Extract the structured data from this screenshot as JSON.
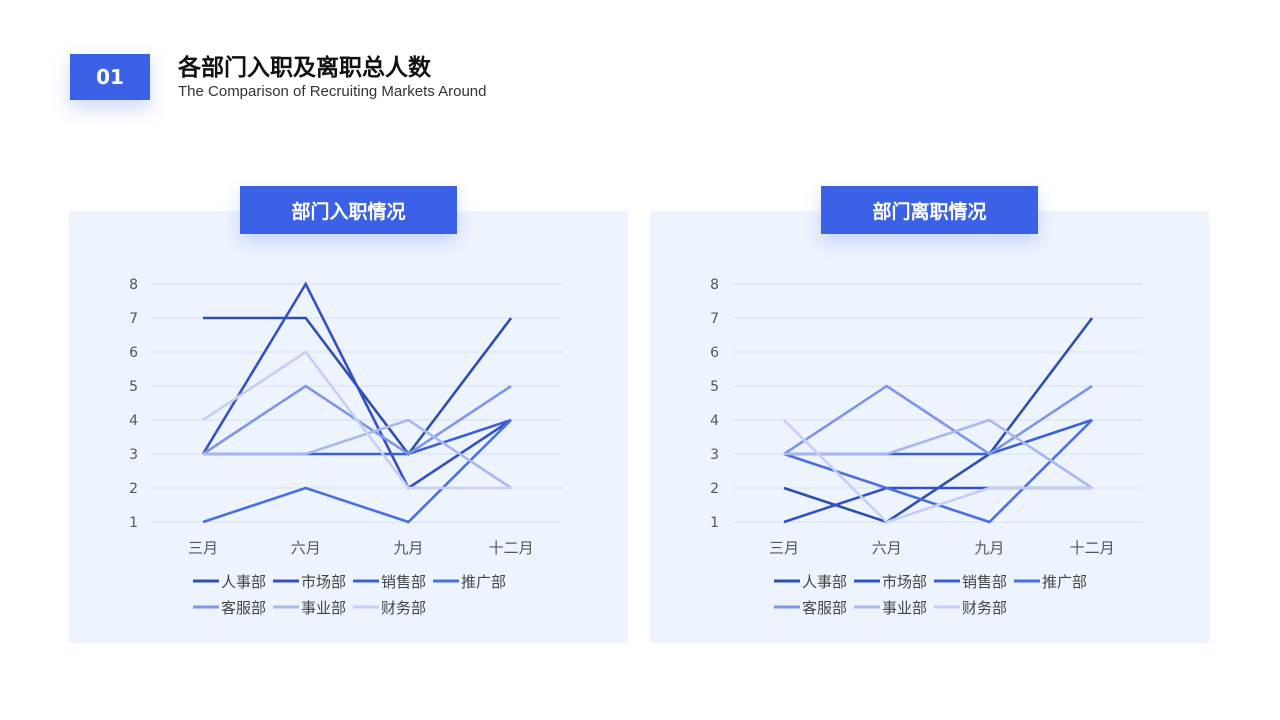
{
  "header": {
    "number": "01",
    "title": "各部门入职及离职总人数",
    "subtitle": "The Comparison of Recruiting Markets Around"
  },
  "chart_data": [
    {
      "type": "line",
      "title": "部门入职情况",
      "categories": [
        "三月",
        "六月",
        "九月",
        "十二月"
      ],
      "ylim": [
        1,
        8
      ],
      "yticks": [
        1,
        2,
        3,
        4,
        5,
        6,
        7,
        8
      ],
      "grid": true,
      "legend_position": "bottom",
      "series": [
        {
          "name": "人事部",
          "color": "#2f4fad",
          "values": [
            7,
            7,
            3,
            7
          ]
        },
        {
          "name": "市场部",
          "color": "#3350c4",
          "values": [
            3,
            8,
            2,
            4
          ]
        },
        {
          "name": "销售部",
          "color": "#3b5fd6",
          "values": [
            3,
            3,
            3,
            4
          ]
        },
        {
          "name": "推广部",
          "color": "#4a6fe3",
          "values": [
            1,
            2,
            1,
            4
          ]
        },
        {
          "name": "客服部",
          "color": "#7f95e8",
          "values": [
            3,
            5,
            3,
            5
          ]
        },
        {
          "name": "事业部",
          "color": "#a9b7ef",
          "values": [
            3,
            3,
            4,
            2
          ]
        },
        {
          "name": "财务部",
          "color": "#c5cef5",
          "values": [
            4,
            6,
            2,
            2
          ]
        }
      ]
    },
    {
      "type": "line",
      "title": "部门离职情况",
      "categories": [
        "三月",
        "六月",
        "九月",
        "十二月"
      ],
      "ylim": [
        1,
        8
      ],
      "yticks": [
        1,
        2,
        3,
        4,
        5,
        6,
        7,
        8
      ],
      "grid": true,
      "legend_position": "bottom",
      "series": [
        {
          "name": "人事部",
          "color": "#2f4fad",
          "values": [
            2,
            1,
            3,
            7
          ]
        },
        {
          "name": "市场部",
          "color": "#3350c4",
          "values": [
            1,
            2,
            2,
            2
          ]
        },
        {
          "name": "销售部",
          "color": "#3b5fd6",
          "values": [
            3,
            3,
            3,
            4
          ]
        },
        {
          "name": "推广部",
          "color": "#4a6fe3",
          "values": [
            3,
            2,
            1,
            4
          ]
        },
        {
          "name": "客服部",
          "color": "#7f95e8",
          "values": [
            3,
            5,
            3,
            5
          ]
        },
        {
          "name": "事业部",
          "color": "#a9b7ef",
          "values": [
            3,
            3,
            4,
            2
          ]
        },
        {
          "name": "财务部",
          "color": "#c5cef5",
          "values": [
            4,
            1,
            2,
            2
          ]
        }
      ]
    }
  ]
}
